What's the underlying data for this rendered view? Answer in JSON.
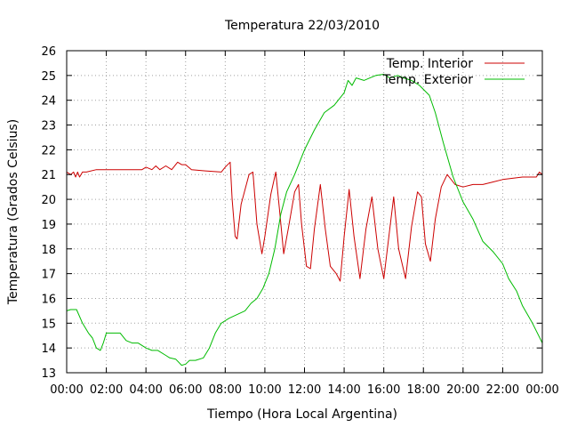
{
  "chart_data": {
    "type": "line",
    "title": "Temperatura 22/03/2010",
    "xlabel": "Tiempo (Hora Local Argentina)",
    "ylabel": "Temperatura (Grados Celsius)",
    "xlim": [
      0,
      24
    ],
    "ylim": [
      13,
      26
    ],
    "grid": true,
    "legend_position": "top-right",
    "x_ticks": [
      "00:00",
      "02:00",
      "04:00",
      "06:00",
      "08:00",
      "10:00",
      "12:00",
      "14:00",
      "16:00",
      "18:00",
      "20:00",
      "22:00",
      "00:00"
    ],
    "y_ticks": [
      "13",
      "14",
      "15",
      "16",
      "17",
      "18",
      "19",
      "20",
      "21",
      "22",
      "23",
      "24",
      "25",
      "26"
    ],
    "series": [
      {
        "name": "Temp. Interior",
        "color": "#cc0000",
        "points": [
          [
            0.0,
            21.1
          ],
          [
            0.2,
            21.0
          ],
          [
            0.35,
            21.1
          ],
          [
            0.45,
            20.9
          ],
          [
            0.55,
            21.1
          ],
          [
            0.65,
            20.9
          ],
          [
            0.8,
            21.1
          ],
          [
            1.0,
            21.1
          ],
          [
            1.5,
            21.2
          ],
          [
            2.0,
            21.2
          ],
          [
            3.0,
            21.2
          ],
          [
            3.8,
            21.2
          ],
          [
            4.0,
            21.3
          ],
          [
            4.3,
            21.2
          ],
          [
            4.5,
            21.35
          ],
          [
            4.7,
            21.2
          ],
          [
            5.0,
            21.35
          ],
          [
            5.3,
            21.2
          ],
          [
            5.6,
            21.5
          ],
          [
            5.8,
            21.4
          ],
          [
            6.0,
            21.4
          ],
          [
            6.3,
            21.2
          ],
          [
            7.0,
            21.15
          ],
          [
            7.8,
            21.1
          ],
          [
            8.0,
            21.3
          ],
          [
            8.25,
            21.5
          ],
          [
            8.35,
            20.0
          ],
          [
            8.5,
            18.5
          ],
          [
            8.6,
            18.4
          ],
          [
            8.8,
            19.8
          ],
          [
            9.2,
            21.0
          ],
          [
            9.4,
            21.1
          ],
          [
            9.6,
            19.0
          ],
          [
            9.85,
            17.8
          ],
          [
            10.0,
            18.5
          ],
          [
            10.3,
            20.2
          ],
          [
            10.55,
            21.1
          ],
          [
            10.75,
            19.5
          ],
          [
            10.95,
            17.8
          ],
          [
            11.2,
            18.9
          ],
          [
            11.5,
            20.3
          ],
          [
            11.7,
            20.6
          ],
          [
            11.85,
            19.0
          ],
          [
            12.1,
            17.3
          ],
          [
            12.3,
            17.2
          ],
          [
            12.5,
            18.8
          ],
          [
            12.8,
            20.6
          ],
          [
            13.05,
            18.8
          ],
          [
            13.3,
            17.3
          ],
          [
            13.6,
            17.0
          ],
          [
            13.8,
            16.7
          ],
          [
            14.0,
            18.5
          ],
          [
            14.25,
            20.4
          ],
          [
            14.5,
            18.5
          ],
          [
            14.8,
            16.8
          ],
          [
            15.1,
            18.8
          ],
          [
            15.4,
            20.1
          ],
          [
            15.7,
            18.0
          ],
          [
            16.0,
            16.8
          ],
          [
            16.3,
            18.8
          ],
          [
            16.5,
            20.1
          ],
          [
            16.75,
            18.0
          ],
          [
            17.1,
            16.8
          ],
          [
            17.4,
            18.9
          ],
          [
            17.7,
            20.3
          ],
          [
            17.9,
            20.1
          ],
          [
            18.1,
            18.2
          ],
          [
            18.35,
            17.5
          ],
          [
            18.6,
            19.2
          ],
          [
            18.9,
            20.5
          ],
          [
            19.2,
            21.0
          ],
          [
            19.6,
            20.6
          ],
          [
            20.0,
            20.5
          ],
          [
            20.5,
            20.6
          ],
          [
            21.0,
            20.6
          ],
          [
            21.5,
            20.7
          ],
          [
            22.0,
            20.8
          ],
          [
            23.0,
            20.9
          ],
          [
            23.7,
            20.9
          ],
          [
            23.85,
            21.1
          ],
          [
            24.0,
            21.0
          ]
        ]
      },
      {
        "name": "Temp. Exterior",
        "color": "#00bb00",
        "points": [
          [
            0.0,
            15.5
          ],
          [
            0.2,
            15.55
          ],
          [
            0.5,
            15.55
          ],
          [
            0.8,
            15.0
          ],
          [
            1.1,
            14.6
          ],
          [
            1.3,
            14.4
          ],
          [
            1.5,
            14.0
          ],
          [
            1.7,
            13.9
          ],
          [
            1.85,
            14.2
          ],
          [
            2.0,
            14.6
          ],
          [
            2.3,
            14.6
          ],
          [
            2.7,
            14.6
          ],
          [
            3.0,
            14.3
          ],
          [
            3.3,
            14.2
          ],
          [
            3.6,
            14.2
          ],
          [
            4.0,
            14.0
          ],
          [
            4.3,
            13.9
          ],
          [
            4.6,
            13.9
          ],
          [
            5.0,
            13.7
          ],
          [
            5.2,
            13.6
          ],
          [
            5.5,
            13.55
          ],
          [
            5.8,
            13.3
          ],
          [
            6.0,
            13.35
          ],
          [
            6.2,
            13.5
          ],
          [
            6.5,
            13.5
          ],
          [
            6.9,
            13.6
          ],
          [
            7.2,
            14.0
          ],
          [
            7.5,
            14.6
          ],
          [
            7.8,
            15.0
          ],
          [
            8.2,
            15.2
          ],
          [
            8.6,
            15.35
          ],
          [
            9.0,
            15.5
          ],
          [
            9.3,
            15.8
          ],
          [
            9.6,
            16.0
          ],
          [
            9.9,
            16.4
          ],
          [
            10.2,
            17.0
          ],
          [
            10.5,
            18.0
          ],
          [
            10.8,
            19.4
          ],
          [
            11.1,
            20.3
          ],
          [
            11.5,
            21.0
          ],
          [
            12.0,
            22.0
          ],
          [
            12.5,
            22.8
          ],
          [
            13.0,
            23.5
          ],
          [
            13.5,
            23.8
          ],
          [
            14.0,
            24.3
          ],
          [
            14.2,
            24.8
          ],
          [
            14.4,
            24.6
          ],
          [
            14.6,
            24.9
          ],
          [
            15.0,
            24.8
          ],
          [
            15.3,
            24.9
          ],
          [
            15.6,
            25.0
          ],
          [
            16.0,
            25.05
          ],
          [
            16.3,
            24.9
          ],
          [
            16.7,
            25.0
          ],
          [
            17.0,
            24.9
          ],
          [
            17.4,
            24.8
          ],
          [
            17.8,
            24.6
          ],
          [
            18.3,
            24.2
          ],
          [
            18.6,
            23.5
          ],
          [
            19.0,
            22.3
          ],
          [
            19.5,
            20.9
          ],
          [
            20.0,
            19.9
          ],
          [
            20.5,
            19.2
          ],
          [
            21.0,
            18.3
          ],
          [
            21.5,
            17.9
          ],
          [
            22.0,
            17.4
          ],
          [
            22.3,
            16.8
          ],
          [
            22.7,
            16.3
          ],
          [
            23.0,
            15.7
          ],
          [
            23.5,
            15.0
          ],
          [
            24.0,
            14.2
          ]
        ]
      }
    ]
  }
}
